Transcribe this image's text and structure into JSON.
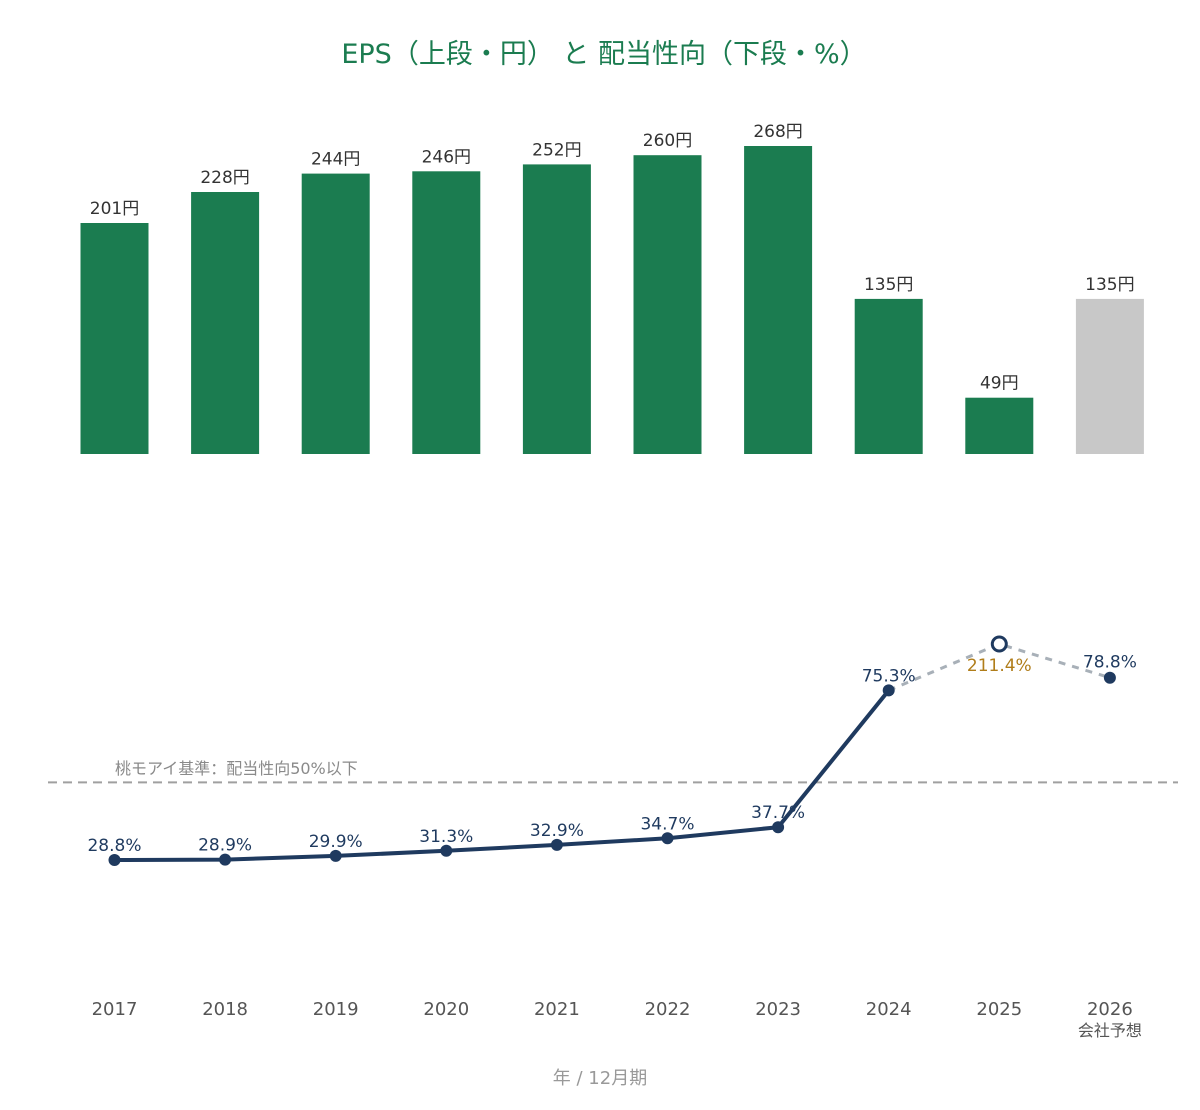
{
  "chart_data": {
    "type": "bar+line",
    "title": "EPS（上段・円） と 配当性向（下段・%）",
    "categories": [
      "2017",
      "2018",
      "2019",
      "2020",
      "2021",
      "2022",
      "2023",
      "2024",
      "2025",
      "2026"
    ],
    "category_note": {
      "2026": "会社予想"
    },
    "eps": {
      "unit": "円",
      "values": [
        201,
        228,
        244,
        246,
        252,
        260,
        268,
        135,
        49,
        135
      ],
      "labels": [
        "201円",
        "228円",
        "244円",
        "246円",
        "252円",
        "260円",
        "268円",
        "135円",
        "49円",
        "135円"
      ],
      "forecast_index": 9,
      "colors": {
        "actual": "#1b7c50",
        "forecast": "#c8c8c8"
      }
    },
    "payout_ratio": {
      "unit": "%",
      "values": [
        28.8,
        28.9,
        29.9,
        31.3,
        32.9,
        34.7,
        37.7,
        75.3,
        211.4,
        78.8
      ],
      "labels": [
        "28.8%",
        "28.9%",
        "29.9%",
        "31.3%",
        "32.9%",
        "34.7%",
        "37.7%",
        "75.3%",
        "211.4%",
        "78.8%"
      ],
      "outlier_index": 8,
      "colors": {
        "line": "#1f3a5f",
        "dashed": "#a8b0b8",
        "outlier_label": "#b07d1a"
      }
    },
    "reference_line": {
      "value": 50,
      "label": "桃モアイ基準：配当性向50%以下",
      "color": "#a0a0a0"
    },
    "xlabel": "年 / 12月期"
  }
}
